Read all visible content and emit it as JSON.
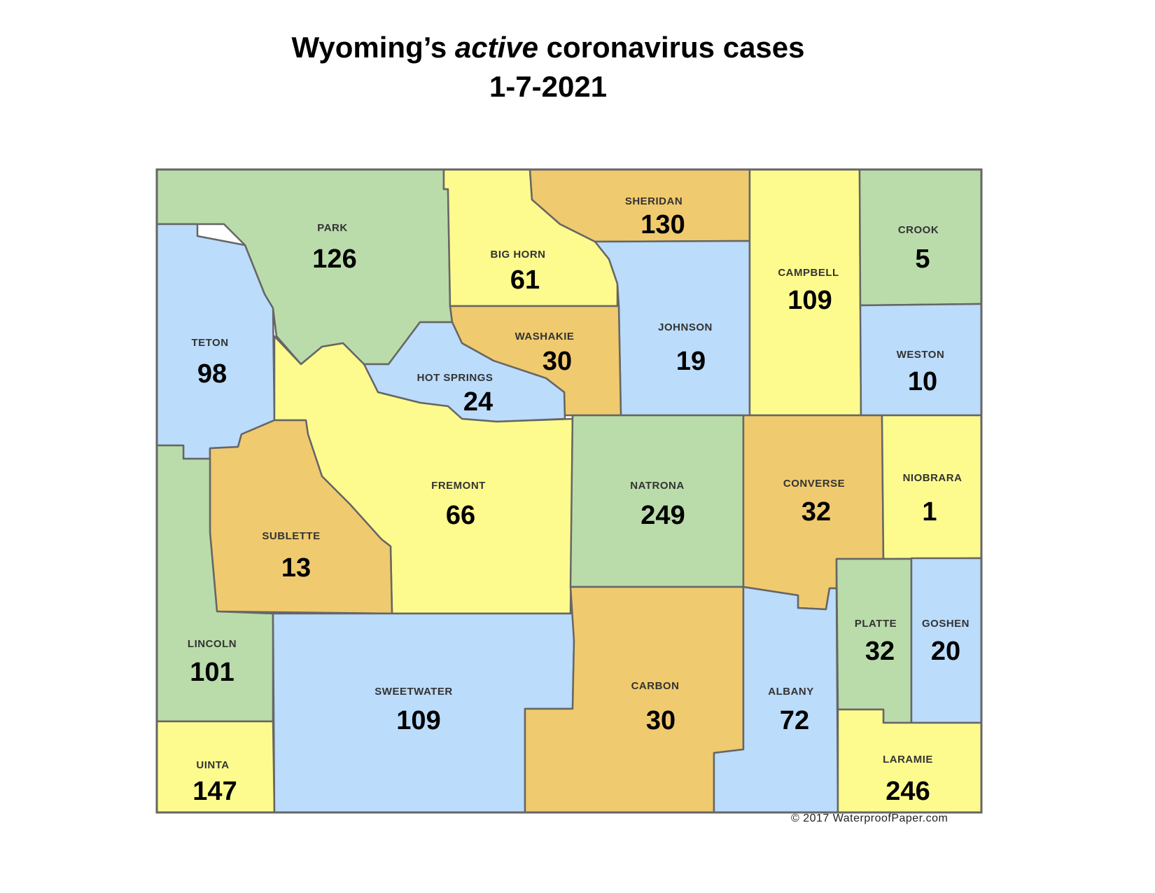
{
  "title": {
    "prefix": "Wyoming’s ",
    "emphasis": "active",
    "suffix": " coronavirus cases",
    "date": "1-7-2021"
  },
  "copyright": "© 2017 WaterproofPaper.com",
  "colors": {
    "green": "#badcaa",
    "blue": "#bbdcfb",
    "yellow": "#fefb8e",
    "orange": "#f0ca6e",
    "border": "#666666"
  },
  "counties": [
    {
      "name": "PARK",
      "cases": "126",
      "color": "green"
    },
    {
      "name": "TETON",
      "cases": "98",
      "color": "blue"
    },
    {
      "name": "BIG HORN",
      "cases": "61",
      "color": "yellow"
    },
    {
      "name": "SHERIDAN",
      "cases": "130",
      "color": "orange"
    },
    {
      "name": "JOHNSON",
      "cases": "19",
      "color": "blue"
    },
    {
      "name": "CAMPBELL",
      "cases": "109",
      "color": "yellow"
    },
    {
      "name": "CROOK",
      "cases": "5",
      "color": "green"
    },
    {
      "name": "WESTON",
      "cases": "10",
      "color": "blue"
    },
    {
      "name": "WASHAKIE",
      "cases": "30",
      "color": "orange"
    },
    {
      "name": "HOT SPRINGS",
      "cases": "24",
      "color": "blue"
    },
    {
      "name": "FREMONT",
      "cases": "66",
      "color": "yellow"
    },
    {
      "name": "SUBLETTE",
      "cases": "13",
      "color": "orange"
    },
    {
      "name": "LINCOLN",
      "cases": "101",
      "color": "green"
    },
    {
      "name": "UINTA",
      "cases": "147",
      "color": "yellow"
    },
    {
      "name": "SWEETWATER",
      "cases": "109",
      "color": "blue"
    },
    {
      "name": "NATRONA",
      "cases": "249",
      "color": "green"
    },
    {
      "name": "CARBON",
      "cases": "30",
      "color": "orange"
    },
    {
      "name": "CONVERSE",
      "cases": "32",
      "color": "orange"
    },
    {
      "name": "NIOBRARA",
      "cases": "1",
      "color": "yellow"
    },
    {
      "name": "ALBANY",
      "cases": "72",
      "color": "blue"
    },
    {
      "name": "PLATTE",
      "cases": "32",
      "color": "green"
    },
    {
      "name": "GOSHEN",
      "cases": "20",
      "color": "blue"
    },
    {
      "name": "LARAMIE",
      "cases": "246",
      "color": "yellow"
    }
  ]
}
